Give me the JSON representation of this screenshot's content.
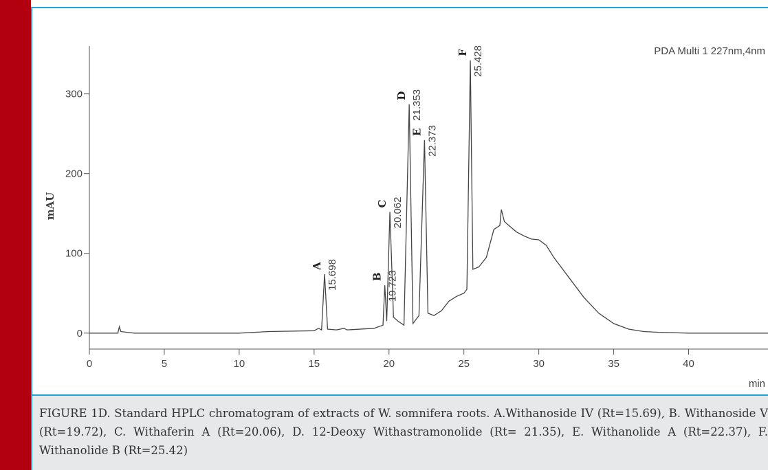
{
  "chart_data": {
    "type": "line",
    "ylabel": "mAU",
    "xlabel": "min",
    "legend_text": "PDA Multi 1 227nm,4nm",
    "xlim": [
      0,
      45.3
    ],
    "ylim": [
      -20,
      360
    ],
    "xticks": [
      0,
      5,
      10,
      15,
      20,
      25,
      30,
      35,
      40
    ],
    "yticks": [
      0,
      100,
      200,
      300
    ],
    "series": [
      {
        "name": "PDA Multi 1",
        "color": "#444444",
        "x": [
          0,
          1.9,
          2.0,
          2.1,
          2.5,
          3,
          10,
          12,
          15,
          15.3,
          15.5,
          15.7,
          15.9,
          16.5,
          17,
          17.2,
          19,
          19.6,
          19.72,
          19.85,
          20.06,
          20.3,
          20.6,
          21.0,
          21.35,
          21.6,
          22.0,
          22.37,
          22.6,
          23,
          23.5,
          24,
          24.5,
          25,
          25.2,
          25.43,
          25.6,
          26,
          26.5,
          27,
          27.4,
          27.5,
          27.7,
          28,
          28.5,
          29,
          29.5,
          30,
          30.5,
          31,
          32,
          33,
          34,
          35,
          36,
          37,
          38,
          40,
          45.3
        ],
        "values": [
          0,
          0,
          8,
          2,
          1,
          0,
          0,
          2,
          3,
          6,
          4,
          74,
          5,
          4,
          6,
          4,
          6,
          10,
          60,
          15,
          152,
          20,
          15,
          10,
          287,
          12,
          22,
          242,
          25,
          22,
          28,
          40,
          46,
          50,
          55,
          342,
          80,
          83,
          95,
          130,
          135,
          155,
          140,
          135,
          127,
          122,
          118,
          117,
          110,
          95,
          70,
          45,
          25,
          12,
          5,
          2,
          1,
          0,
          0
        ]
      }
    ],
    "peaks": [
      {
        "letter": "A",
        "rt": 15.698
      },
      {
        "letter": "B",
        "rt": 19.723
      },
      {
        "letter": "C",
        "rt": 20.062
      },
      {
        "letter": "D",
        "rt": 21.353
      },
      {
        "letter": "E",
        "rt": 22.373
      },
      {
        "letter": "F",
        "rt": 25.428
      }
    ]
  },
  "caption": "FIGURE 1D. Standard HPLC chromatogram of extracts of W. somnifera roots. A.Withanoside IV (Rt=15.69), B. Withanoside V (Rt=19.72), C. Withaferin A (Rt=20.06), D. 12-Deoxy Withastramonolide (Rt= 21.35), E. Withanolide A (Rt=22.37), F. Withanolide B (Rt=25.42)"
}
